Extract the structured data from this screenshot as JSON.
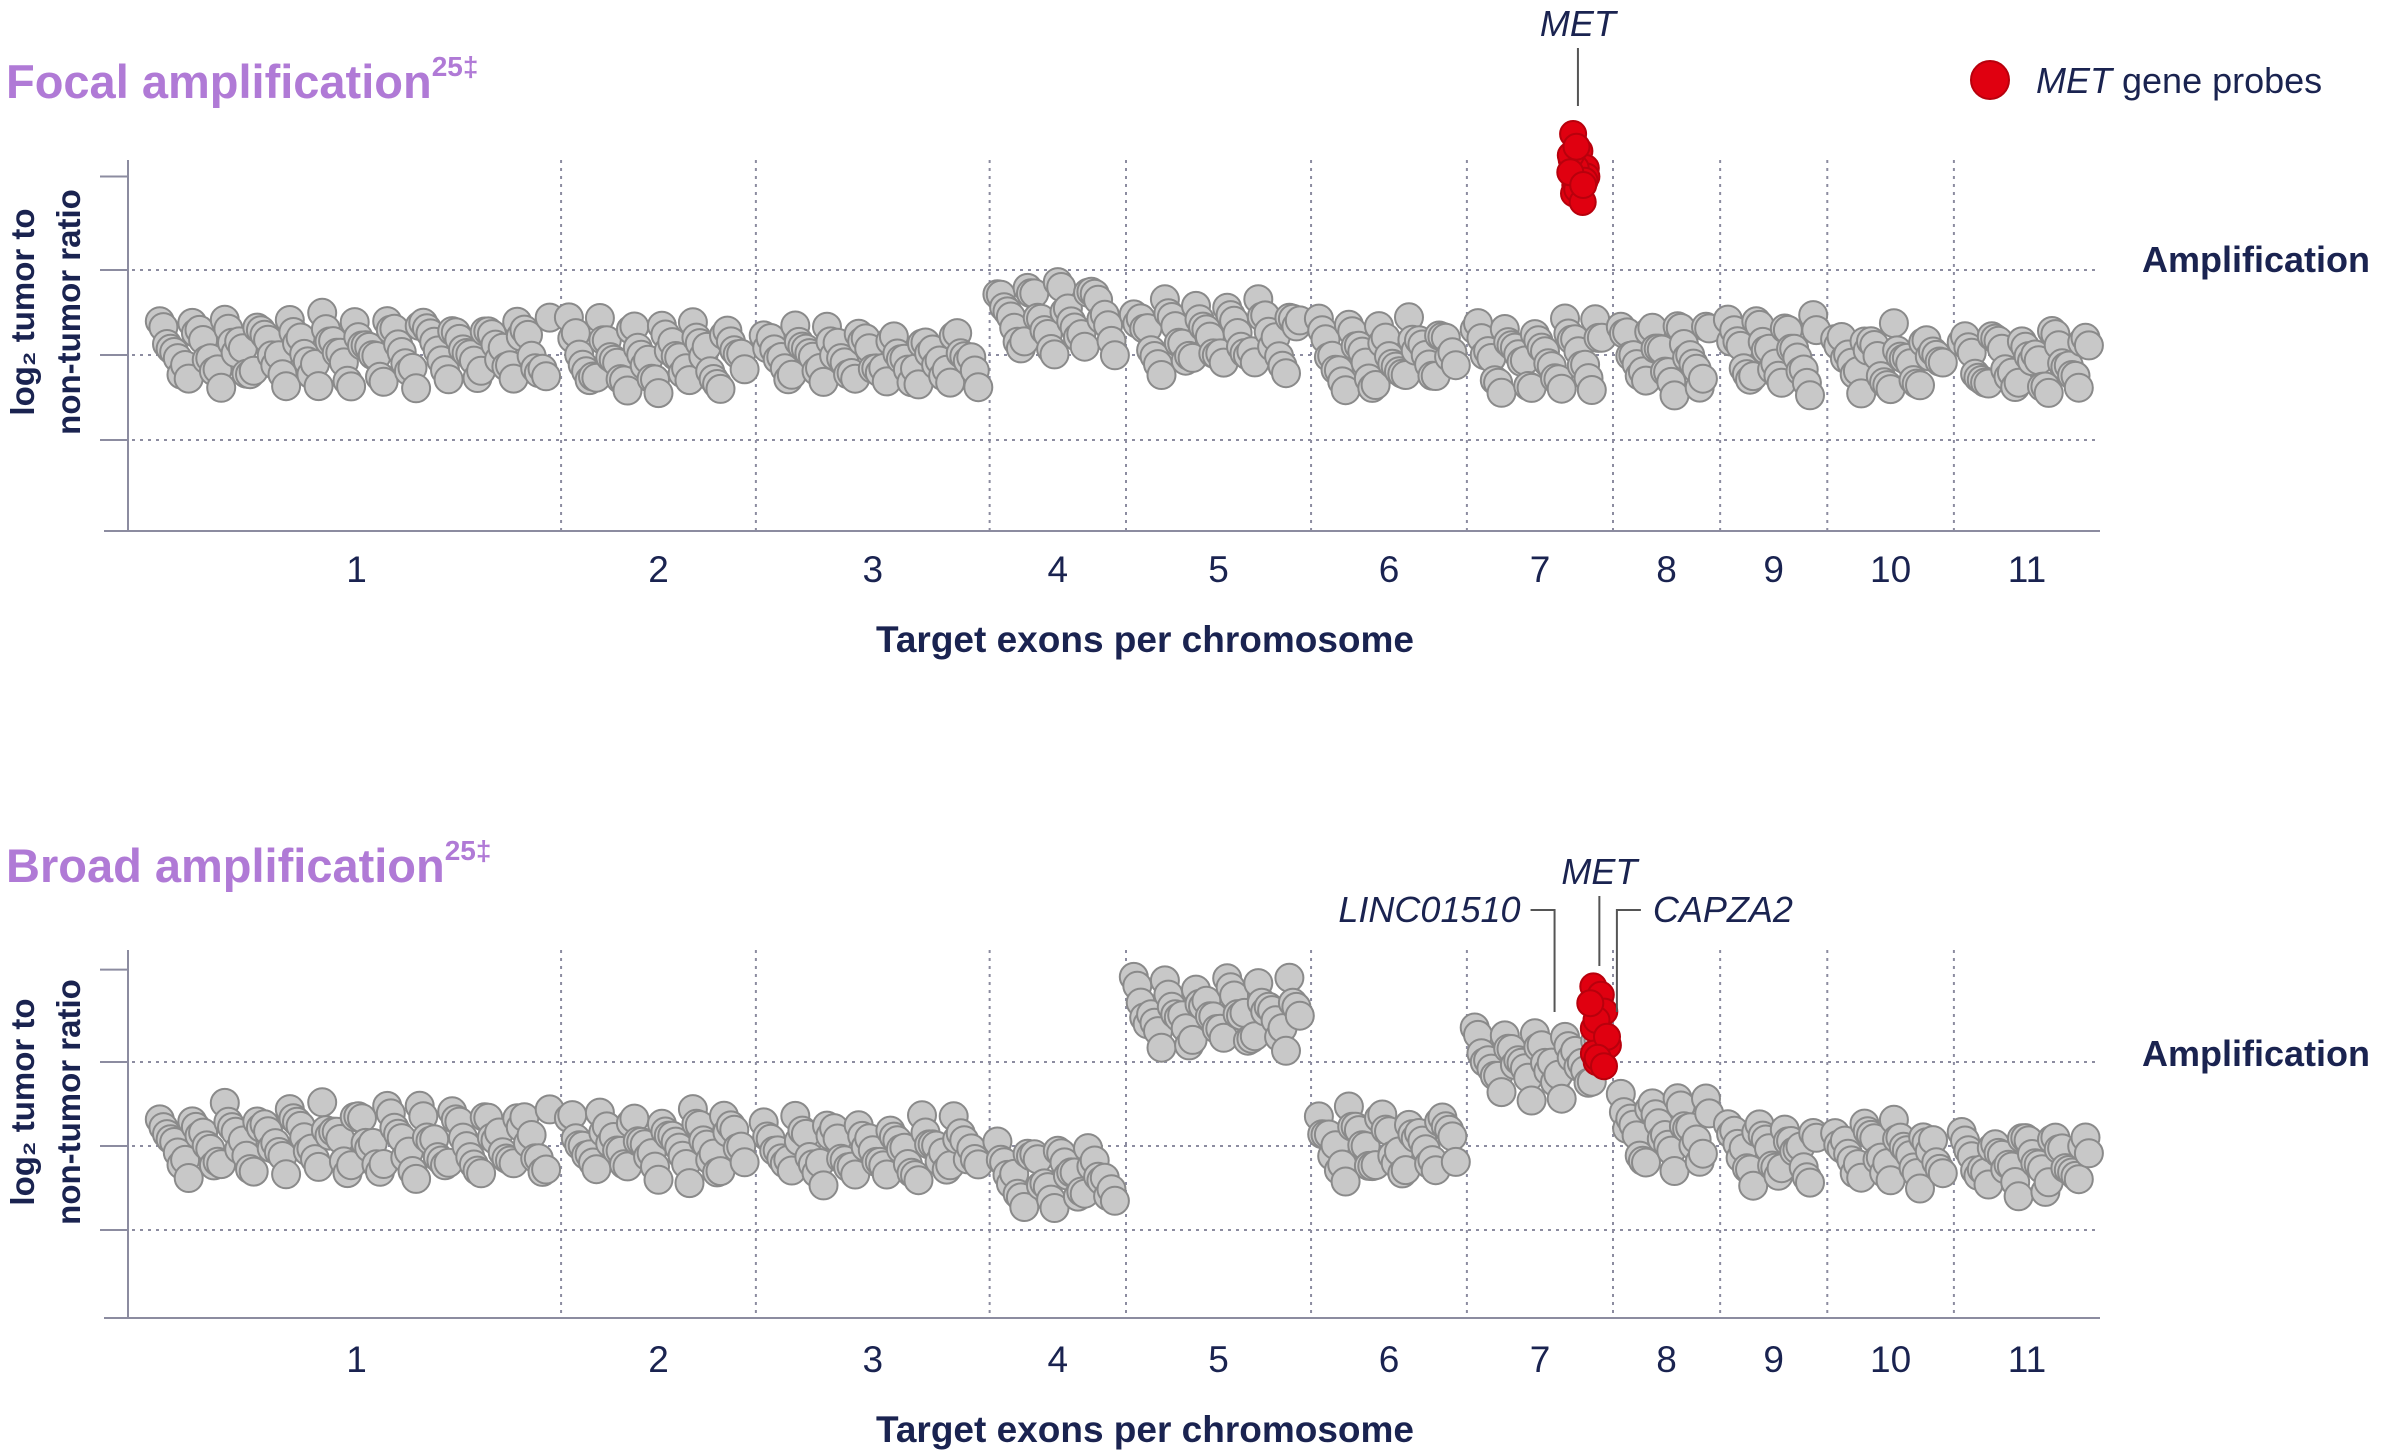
{
  "colors": {
    "title": "#b07ad6",
    "text": "#1a2350",
    "probe_gray_fill": "#c8c8c8",
    "probe_gray_stroke": "#8a8a8a",
    "met_red": "#e00010",
    "grid": "#8c8ca0"
  },
  "legend": {
    "gene": "MET",
    "rest": " gene probes",
    "color": "#e00010"
  },
  "chart_data": [
    {
      "type": "scatter",
      "title": "Focal amplification",
      "title_superscript": "25‡",
      "ylabel_line1": "log₂ tumor to",
      "ylabel_line2": "non-tumor ratio",
      "xlabel": "Target exons per chromosome",
      "ylim": [
        -2,
        2
      ],
      "gridlines_y": [
        1,
        0,
        -1
      ],
      "band_label": "Amplification",
      "chromosomes": [
        {
          "label": "1",
          "range": [
            0,
            21
          ],
          "baseline": 0.05,
          "amplitude": 0.35,
          "high": false
        },
        {
          "label": "2",
          "range": [
            21,
            31
          ],
          "baseline": 0.0,
          "amplitude": 0.35,
          "high": false
        },
        {
          "label": "3",
          "range": [
            31,
            43
          ],
          "baseline": -0.05,
          "amplitude": 0.3,
          "high": false
        },
        {
          "label": "4",
          "range": [
            43,
            50
          ],
          "baseline": 0.45,
          "amplitude": 0.35,
          "high": false
        },
        {
          "label": "5",
          "range": [
            50,
            59.5
          ],
          "baseline": 0.2,
          "amplitude": 0.35,
          "high": false
        },
        {
          "label": "6",
          "range": [
            59.5,
            67.5
          ],
          "baseline": 0.0,
          "amplitude": 0.35,
          "high": false
        },
        {
          "label": "7",
          "range": [
            67.5,
            75
          ],
          "baseline": 0.0,
          "amplitude": 0.35,
          "high": false
        },
        {
          "label": "8",
          "range": [
            75,
            80.5
          ],
          "baseline": 0.0,
          "amplitude": 0.35,
          "high": false
        },
        {
          "label": "9",
          "range": [
            80.5,
            86
          ],
          "baseline": 0.0,
          "amplitude": 0.35,
          "high": false
        },
        {
          "label": "10",
          "range": [
            86,
            92.5
          ],
          "baseline": -0.05,
          "amplitude": 0.3,
          "high": false
        },
        {
          "label": "11",
          "range": [
            92.5,
            100
          ],
          "baseline": -0.1,
          "amplitude": 0.3,
          "high": false
        }
      ],
      "met_probes": {
        "x": 73.2,
        "y": [
          2.6,
          2.4,
          2.2,
          2.3,
          2.0,
          2.1,
          1.9,
          2.2,
          2.05,
          2.35,
          1.95,
          1.8,
          2.15,
          2.45,
          2.0
        ]
      },
      "annotations": [
        {
          "label": "MET",
          "x": 73.2
        }
      ]
    },
    {
      "type": "scatter",
      "title": "Broad amplification",
      "title_superscript": "25‡",
      "ylabel_line1": "log₂ tumor to",
      "ylabel_line2": "non-tumor ratio",
      "xlabel": "Target exons per chromosome",
      "ylim": [
        -2,
        2
      ],
      "gridlines_y": [
        1,
        0,
        -1
      ],
      "band_label": "Amplification",
      "chromosomes": [
        {
          "label": "1",
          "range": [
            0,
            21
          ],
          "baseline": 0.05,
          "amplitude": 0.35,
          "high": false
        },
        {
          "label": "2",
          "range": [
            21,
            31
          ],
          "baseline": 0.0,
          "amplitude": 0.35,
          "high": false
        },
        {
          "label": "3",
          "range": [
            31,
            43
          ],
          "baseline": -0.05,
          "amplitude": 0.3,
          "high": false
        },
        {
          "label": "4",
          "range": [
            43,
            50
          ],
          "baseline": -0.35,
          "amplitude": 0.3,
          "high": false
        },
        {
          "label": "5",
          "range": [
            50,
            59.5
          ],
          "baseline": 1.55,
          "amplitude": 0.35,
          "high": true
        },
        {
          "label": "6",
          "range": [
            59.5,
            67.5
          ],
          "baseline": 0.0,
          "amplitude": 0.35,
          "high": false
        },
        {
          "label": "7",
          "range": [
            67.5,
            75
          ],
          "baseline": 1.0,
          "amplitude": 0.35,
          "high": true
        },
        {
          "label": "8",
          "range": [
            75,
            80.5
          ],
          "baseline": 0.15,
          "amplitude": 0.35,
          "high": false
        },
        {
          "label": "9",
          "range": [
            80.5,
            86
          ],
          "baseline": -0.05,
          "amplitude": 0.3,
          "high": false
        },
        {
          "label": "10",
          "range": [
            86,
            92.5
          ],
          "baseline": -0.1,
          "amplitude": 0.3,
          "high": false
        },
        {
          "label": "11",
          "range": [
            92.5,
            100
          ],
          "baseline": -0.2,
          "amplitude": 0.3,
          "high": false
        }
      ],
      "met_probes": {
        "x": 74.3,
        "y": [
          1.9,
          1.8,
          1.6,
          1.4,
          1.5,
          1.2,
          1.1,
          1.0,
          1.3,
          1.7,
          1.05,
          0.95
        ]
      },
      "annotations": [
        {
          "label": "LINC01510",
          "x": 72.0
        },
        {
          "label": "MET",
          "x": 74.3
        },
        {
          "label": "CAPZA2",
          "x": 75.2
        }
      ]
    }
  ]
}
